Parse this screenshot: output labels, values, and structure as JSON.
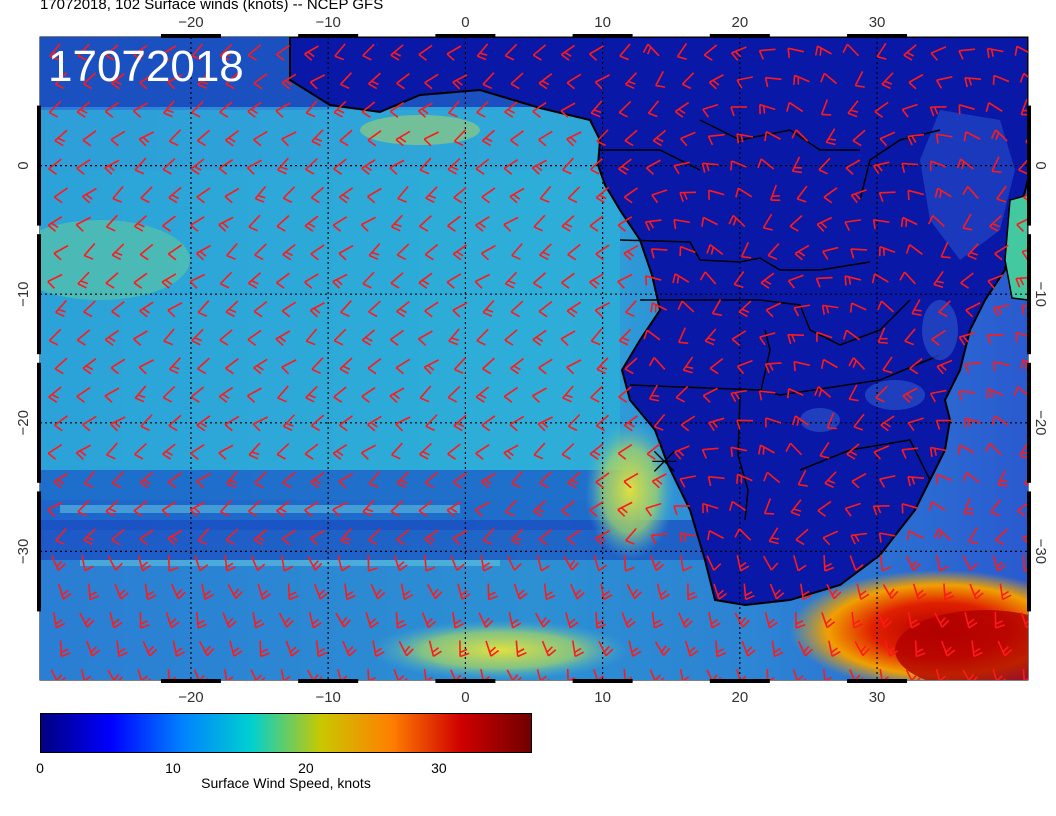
{
  "title": "17072018, 102 Surface winds (knots) -- NCEP GFS",
  "date_label": "17072018",
  "map": {
    "lon_range": [
      -31,
      41
    ],
    "lat_range": [
      -40,
      10
    ],
    "lon_ticks": [
      -20,
      -10,
      0,
      10,
      20,
      30
    ],
    "lon_tick_labels": [
      "−20",
      "−10",
      "0",
      "10",
      "20",
      "30"
    ],
    "lat_ticks": [
      0,
      -10,
      -20,
      -30
    ],
    "lat_tick_labels": [
      "0",
      "−10",
      "−20",
      "−30"
    ],
    "grid": true,
    "barb_color": "#ff1a1a",
    "land_color": "#0a1aa8",
    "coast_color": "#000000",
    "marker": {
      "lon": 14.5,
      "lat": -23,
      "symbol": "x"
    }
  },
  "colorbar": {
    "min": 0,
    "max": 37,
    "tick_values": [
      0,
      10,
      20,
      30
    ],
    "tick_labels": [
      "0",
      "10",
      "20",
      "30"
    ],
    "label": "Surface Wind Speed, knots",
    "colors": [
      "#000080",
      "#0000ff",
      "#0080ff",
      "#00d0d0",
      "#c8c800",
      "#ff8000",
      "#d00000",
      "#700000"
    ]
  }
}
